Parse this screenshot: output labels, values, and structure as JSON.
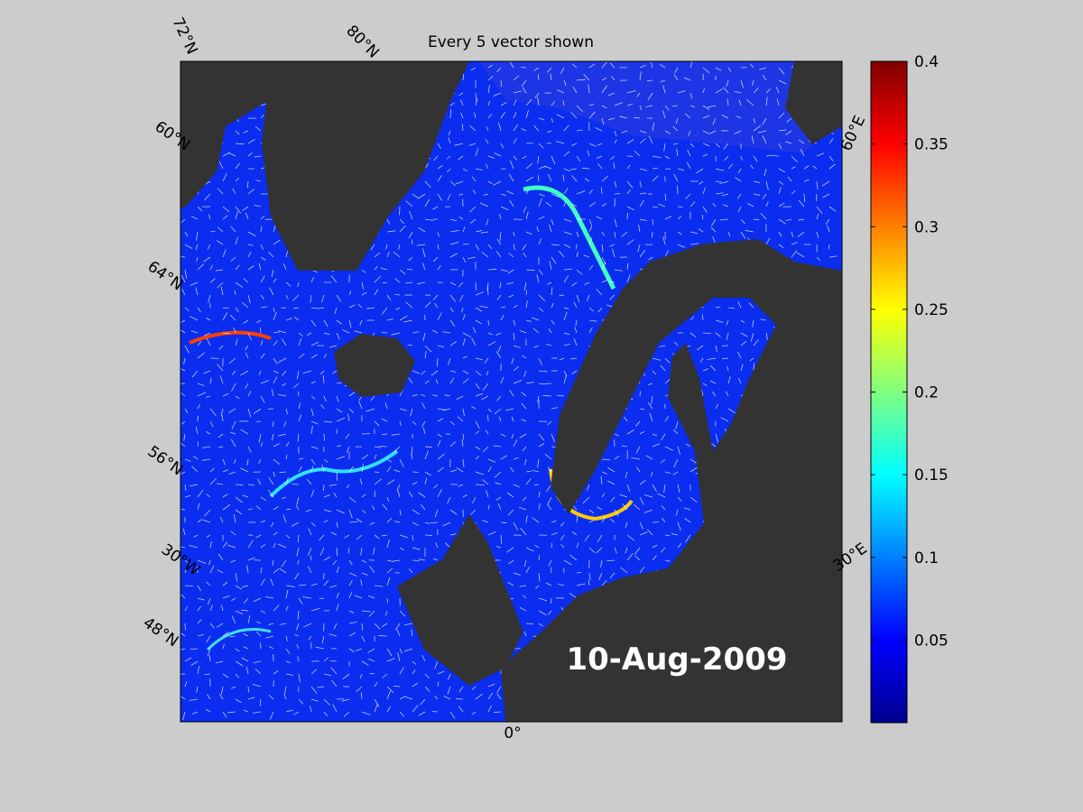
{
  "title": "Every 5 vector shown",
  "date": "10-Aug-2009",
  "map_labels": [
    "72°N",
    "80°N",
    "60°N",
    "64°N",
    "56°N",
    "30°W",
    "48°N",
    "0°",
    "60°E",
    "30°E"
  ],
  "colorbar": {
    "clim": [
      0,
      0.4
    ],
    "ticks": [
      0.05,
      0.1,
      0.15,
      0.2,
      0.25,
      0.3,
      0.35,
      0.4
    ],
    "colormap": "jet"
  }
}
